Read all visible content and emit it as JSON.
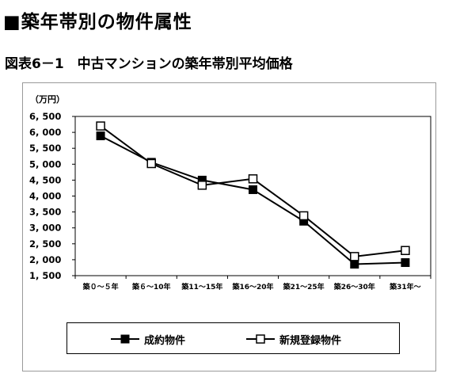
{
  "heading": "■築年帯別の物件属性",
  "subheading": "図表6－1　中古マンションの築年帯別平均価格",
  "chart_data": {
    "type": "line",
    "unit_label": "（万円）",
    "categories": [
      "築０～５年",
      "築６～10年",
      "築11～15年",
      "築16～20年",
      "築21～25年",
      "築26～30年",
      "築31年～"
    ],
    "ylim": [
      1500,
      6500
    ],
    "yticks": [
      1500,
      2000,
      2500,
      3000,
      3500,
      4000,
      4500,
      5000,
      5500,
      6000,
      6500
    ],
    "ytick_labels": [
      "1, 500",
      "2, 000",
      "2, 500",
      "3, 000",
      "3, 500",
      "4, 000",
      "4, 500",
      "5, 000",
      "5, 500",
      "6, 000",
      "6, 500"
    ],
    "grid": false,
    "legend_position": "bottom",
    "series": [
      {
        "name": "成約物件",
        "marker": "filled-square",
        "color": "#000000",
        "values": [
          5890,
          5060,
          4500,
          4200,
          3210,
          1860,
          1910
        ]
      },
      {
        "name": "新規登録物件",
        "marker": "open-square",
        "color": "#000000",
        "values": [
          6200,
          5020,
          4340,
          4540,
          3380,
          2100,
          2290
        ]
      }
    ]
  }
}
